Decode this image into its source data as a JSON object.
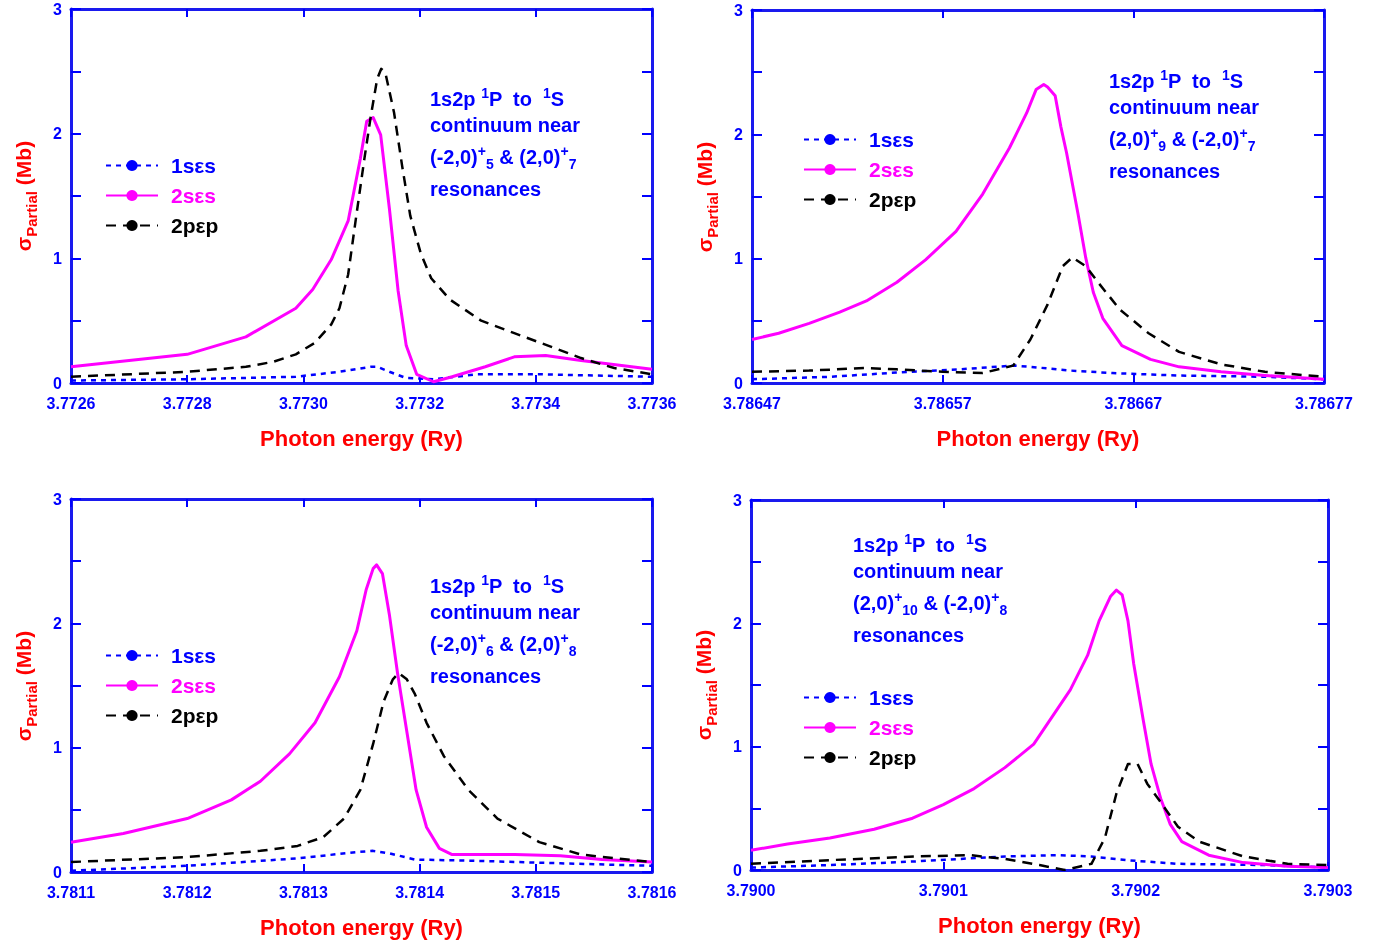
{
  "chart_data": [
    {
      "type": "line",
      "xlabel": "Photon energy (Ry)",
      "ylabel": "σ$_{Partial}$ (Mb)",
      "legend": "left",
      "grid": false,
      "marker": "none",
      "annotations": [
        "1s2p $^{1}$P  to  $^{1}$S",
        "continuum near",
        "(-2,0)$^{+}$$_{5}$ & (2,0)$^{+}$$_{7}$",
        "resonances"
      ],
      "xlim": [
        3.7726,
        3.7736
      ],
      "xticks": [
        3.7726,
        3.7728,
        {
          "value": 3.773,
          "label": "3.7730"
        },
        3.7732,
        3.7734,
        3.7736
      ],
      "ylim": [
        0,
        3
      ],
      "yticks": [
        0,
        {
          "value": 0.5,
          "label": null
        },
        1,
        {
          "value": 1.5,
          "label": null
        },
        2,
        {
          "value": 2.5,
          "label": null
        },
        3
      ],
      "series": [
        {
          "name": "1sεs",
          "color": "#0000ff",
          "line_style": "dotted",
          "x": [
            3.7726,
            3.7728,
            3.772987,
            3.773062,
            3.773116,
            3.773127,
            3.773148,
            3.773177,
            3.773224,
            3.773299,
            3.773406,
            3.7736
          ],
          "values": [
            0.02,
            0.03,
            0.05,
            0.09,
            0.13,
            0.13,
            0.09,
            0.04,
            0.03,
            0.07,
            0.07,
            0.05
          ]
        },
        {
          "name": "2sεs",
          "color": "#ff00ff",
          "line_style": "solid",
          "x": [
            3.7726,
            3.7728,
            3.772901,
            3.772987,
            3.773016,
            3.773048,
            3.773077,
            3.773098,
            3.773109,
            3.77312,
            3.773133,
            3.773148,
            3.773163,
            3.773177,
            3.773195,
            3.773224,
            3.773256,
            3.773313,
            3.773363,
            3.773417,
            3.773478,
            3.7736
          ],
          "values": [
            0.13,
            0.23,
            0.37,
            0.6,
            0.75,
            0.99,
            1.3,
            1.8,
            2.1,
            2.13,
            1.99,
            1.4,
            0.74,
            0.3,
            0.07,
            0.01,
            0.05,
            0.13,
            0.21,
            0.22,
            0.18,
            0.11
          ]
        },
        {
          "name": "2pεp",
          "color": "#000000",
          "line_style": "dashed",
          "x": [
            3.7726,
            3.7728,
            3.772901,
            3.772948,
            3.772987,
            3.773019,
            3.773048,
            3.773062,
            3.773077,
            3.773091,
            3.773105,
            3.773116,
            3.773127,
            3.773134,
            3.773141,
            3.773156,
            3.77317,
            3.773184,
            3.773202,
            3.77322,
            3.773252,
            3.773306,
            3.773363,
            3.773421,
            3.773478,
            3.773535,
            3.7736
          ],
          "values": [
            0.05,
            0.09,
            0.13,
            0.17,
            0.23,
            0.32,
            0.47,
            0.6,
            0.87,
            1.34,
            1.8,
            2.14,
            2.44,
            2.52,
            2.49,
            2.17,
            1.74,
            1.34,
            1.04,
            0.84,
            0.67,
            0.5,
            0.4,
            0.3,
            0.2,
            0.12,
            0.07
          ]
        }
      ]
    },
    {
      "type": "line",
      "xlabel": "Photon energy (Ry)",
      "ylabel": "σ$_{Partial}$ (Mb)",
      "legend": "left",
      "grid": false,
      "marker": "none",
      "annotations": [
        "1s2p $^{1}$P  to  $^{1}$S",
        "continuum near",
        "(2,0)$^{+}$$_{9}$ & (-2,0)$^{+}$$_{7}$",
        "resonances"
      ],
      "xlim": [
        3.78647,
        3.78677
      ],
      "xticks": [
        3.78647,
        3.78657,
        3.78667,
        3.78677
      ],
      "ylim": [
        0,
        3
      ],
      "yticks": [
        0,
        {
          "value": 0.5,
          "label": null
        },
        1,
        {
          "value": 1.5,
          "label": null
        },
        2,
        {
          "value": 2.5,
          "label": null
        },
        3
      ],
      "series": [
        {
          "name": "1sεs",
          "color": "#0000ff",
          "line_style": "dotted",
          "x": [
            3.78647,
            3.786511,
            3.786552,
            3.786579,
            3.786607,
            3.786616,
            3.786637,
            3.786659,
            3.786694,
            3.786739,
            3.78677
          ],
          "values": [
            0.03,
            0.05,
            0.09,
            0.11,
            0.14,
            0.13,
            0.1,
            0.08,
            0.06,
            0.05,
            0.03
          ]
        },
        {
          "name": "2sεs",
          "color": "#ff00ff",
          "line_style": "solid",
          "x": [
            3.78647,
            3.786484,
            3.7865,
            3.786516,
            3.78653,
            3.786546,
            3.786561,
            3.786577,
            3.786591,
            3.786605,
            3.786614,
            3.786619,
            3.786623,
            3.786625,
            3.786629,
            3.786632,
            3.786635,
            3.786641,
            3.786645,
            3.786649,
            3.786654,
            3.786664,
            3.786679,
            3.786694,
            3.786716,
            3.786739,
            3.78677
          ],
          "values": [
            0.35,
            0.4,
            0.48,
            0.57,
            0.66,
            0.81,
            0.99,
            1.22,
            1.52,
            1.89,
            2.17,
            2.36,
            2.4,
            2.38,
            2.31,
            2.06,
            1.85,
            1.36,
            1.01,
            0.73,
            0.52,
            0.3,
            0.19,
            0.13,
            0.09,
            0.06,
            0.03
          ]
        },
        {
          "name": "2pεp",
          "color": "#000000",
          "line_style": "dashed",
          "x": [
            3.78647,
            3.7865,
            3.786529,
            3.786546,
            3.78657,
            3.786591,
            3.786607,
            3.786616,
            3.786625,
            3.786633,
            3.786638,
            3.786645,
            3.786652,
            3.786663,
            3.786678,
            3.786694,
            3.786716,
            3.786739,
            3.78677
          ],
          "values": [
            0.09,
            0.1,
            0.12,
            0.11,
            0.09,
            0.08,
            0.14,
            0.35,
            0.63,
            0.94,
            1.01,
            0.94,
            0.8,
            0.59,
            0.4,
            0.25,
            0.15,
            0.09,
            0.05
          ]
        }
      ]
    },
    {
      "type": "line",
      "xlabel": "Photon energy (Ry)",
      "ylabel": "σ$_{Partial}$ (Mb)",
      "legend": "left",
      "grid": false,
      "marker": "none",
      "annotations": [
        "1s2p $^{1}$P  to  $^{1}$S",
        "continuum near",
        "(-2,0)$^{+}$$_{6}$ & (2,0)$^{+}$$_{8}$",
        "resonances"
      ],
      "xlim": [
        3.7811,
        3.7816
      ],
      "xticks": [
        3.7811,
        3.7812,
        3.7813,
        3.7814,
        3.7815,
        3.7816
      ],
      "ylim": [
        0,
        3
      ],
      "yticks": [
        0,
        {
          "value": 0.5,
          "label": null
        },
        1,
        {
          "value": 1.5,
          "label": null
        },
        2,
        {
          "value": 2.5,
          "label": null
        },
        3
      ],
      "series": [
        {
          "name": "1sεs",
          "color": "#0000ff",
          "line_style": "dotted",
          "x": [
            3.7811,
            3.7812,
            3.781295,
            3.781346,
            3.78136,
            3.781374,
            3.781396,
            3.781449,
            3.781521,
            3.7816
          ],
          "values": [
            0.01,
            0.05,
            0.11,
            0.16,
            0.17,
            0.15,
            0.1,
            0.09,
            0.07,
            0.05
          ]
        },
        {
          "name": "2sεs",
          "color": "#ff00ff",
          "line_style": "solid",
          "x": [
            3.7811,
            3.781145,
            3.7812,
            3.781238,
            3.781263,
            3.781288,
            3.78131,
            3.781331,
            3.781346,
            3.781354,
            3.78136,
            3.781363,
            3.781368,
            3.781374,
            3.781381,
            3.781389,
            3.781397,
            3.781406,
            3.781417,
            3.781428,
            3.781449,
            3.781482,
            3.781521,
            3.781557,
            3.7816
          ],
          "values": [
            0.24,
            0.31,
            0.43,
            0.58,
            0.73,
            0.95,
            1.2,
            1.57,
            1.94,
            2.27,
            2.44,
            2.47,
            2.4,
            2.07,
            1.6,
            1.13,
            0.66,
            0.36,
            0.19,
            0.14,
            0.14,
            0.14,
            0.13,
            0.1,
            0.08
          ]
        },
        {
          "name": "2pεp",
          "color": "#000000",
          "line_style": "dashed",
          "x": [
            3.7811,
            3.7812,
            3.781263,
            3.781295,
            3.781317,
            3.781335,
            3.781349,
            3.78136,
            3.781369,
            3.781377,
            3.781382,
            3.781389,
            3.781396,
            3.781406,
            3.781421,
            3.781442,
            3.781467,
            3.781503,
            3.781539,
            3.7816
          ],
          "values": [
            0.08,
            0.12,
            0.17,
            0.21,
            0.28,
            0.43,
            0.66,
            1.03,
            1.37,
            1.55,
            1.6,
            1.55,
            1.43,
            1.2,
            0.93,
            0.66,
            0.43,
            0.24,
            0.14,
            0.08
          ]
        }
      ]
    },
    {
      "type": "line",
      "xlabel": "Photon energy (Ry)",
      "ylabel": "σ$_{Partial}$ (Mb)",
      "legend": "left",
      "grid": false,
      "marker": "none",
      "annotations": [
        "1s2p $^{1}$P  to  $^{1}$S",
        "continuum near",
        "(2,0)$^{+}$$_{10}$ & (-2,0)$^{+}$$_{8}$",
        "resonances"
      ],
      "xlim": [
        3.79,
        3.7903
      ],
      "xticks": [
        {
          "value": 3.79,
          "label": "3.7900"
        },
        3.7901,
        3.7902,
        3.7903
      ],
      "ylim": [
        0,
        3
      ],
      "yticks": [
        0,
        {
          "value": 0.5,
          "label": null
        },
        1,
        {
          "value": 1.5,
          "label": null
        },
        2,
        {
          "value": 2.5,
          "label": null
        },
        3
      ],
      "series": [
        {
          "name": "1sεs",
          "color": "#0000ff",
          "line_style": "dotted",
          "x": [
            3.79,
            3.790041,
            3.790086,
            3.790132,
            3.790159,
            3.790177,
            3.790195,
            3.790222,
            3.790267,
            3.7903
          ],
          "values": [
            0.02,
            0.04,
            0.07,
            0.11,
            0.12,
            0.11,
            0.08,
            0.05,
            0.04,
            0.02
          ]
        },
        {
          "name": "2sεs",
          "color": "#ff00ff",
          "line_style": "solid",
          "x": [
            3.79,
            3.790019,
            3.790041,
            3.790064,
            3.790084,
            3.7901,
            3.790116,
            3.790132,
            3.790147,
            3.790166,
            3.790175,
            3.790181,
            3.790187,
            3.79019,
            3.790193,
            3.790196,
            3.790199,
            3.790204,
            3.790208,
            3.790213,
            3.790218,
            3.790224,
            3.790238,
            3.790256,
            3.790279,
            3.7903
          ],
          "values": [
            0.16,
            0.21,
            0.26,
            0.33,
            0.42,
            0.53,
            0.66,
            0.83,
            1.02,
            1.46,
            1.74,
            2.02,
            2.22,
            2.27,
            2.23,
            2.02,
            1.67,
            1.21,
            0.86,
            0.58,
            0.37,
            0.23,
            0.12,
            0.06,
            0.03,
            0.02
          ]
        },
        {
          "name": "2pεp",
          "color": "#000000",
          "line_style": "dashed",
          "x": [
            3.79,
            3.790041,
            3.790086,
            3.790114,
            3.790132,
            3.79015,
            3.790163,
            3.790177,
            3.790184,
            3.79019,
            3.790196,
            3.790201,
            3.790206,
            3.790213,
            3.790222,
            3.790233,
            3.790256,
            3.790279,
            3.7903
          ],
          "values": [
            0.05,
            0.08,
            0.11,
            0.12,
            0.09,
            0.04,
            0,
            0.05,
            0.26,
            0.62,
            0.86,
            0.86,
            0.7,
            0.55,
            0.35,
            0.23,
            0.11,
            0.05,
            0.04
          ]
        }
      ]
    }
  ]
}
